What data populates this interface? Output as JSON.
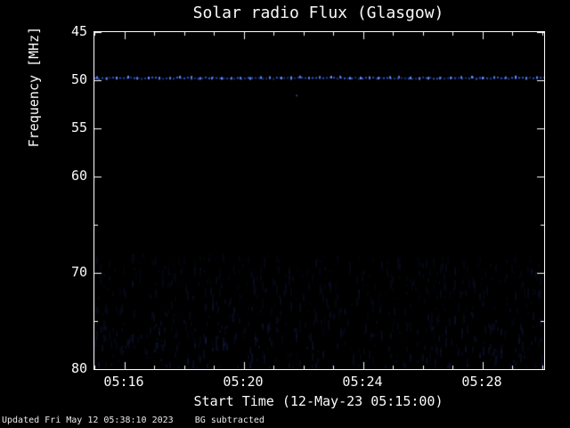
{
  "footer": {
    "updated": "Updated Fri May 12 05:38:10 2023",
    "bg_note": "BG subtracted"
  },
  "chart_data": {
    "type": "heatmap",
    "title": "Solar radio Flux (Glasgow)",
    "xlabel": "Start Time (12-May-23 05:15:00)",
    "ylabel": "Frequency [MHz]",
    "x_start": "05:15:00",
    "x_end_approx": "05:30:00",
    "x_tick_labels": [
      "05:16",
      "05:20",
      "05:24",
      "05:28"
    ],
    "x_tick_minutes": [
      1,
      5,
      9,
      13
    ],
    "y_tick_labels": [
      45,
      50,
      55,
      60,
      70,
      80
    ],
    "y_minor_ticks": [
      65,
      75
    ],
    "ylim": [
      45,
      80
    ],
    "y_inverted_downward": true,
    "background_color": "#000000",
    "axis_color": "#ffffff",
    "signal_color": "#4d6eff",
    "features": [
      {
        "name": "narrowband-emission-band",
        "freq_mhz": 49.7,
        "extent": "continuous from 05:15 to 05:30",
        "appearance": "bright dotted blue horizontal band with periodic brighter dots"
      },
      {
        "name": "isolated-point",
        "freq_mhz": 51.5,
        "time_minutes_from_start": 6.75,
        "appearance": "single faint blue dot"
      },
      {
        "name": "broadband-background-noise",
        "freq_range_mhz": [
          68,
          80
        ],
        "appearance": "faint blue vertical speckle / streaks across full time range"
      }
    ]
  }
}
